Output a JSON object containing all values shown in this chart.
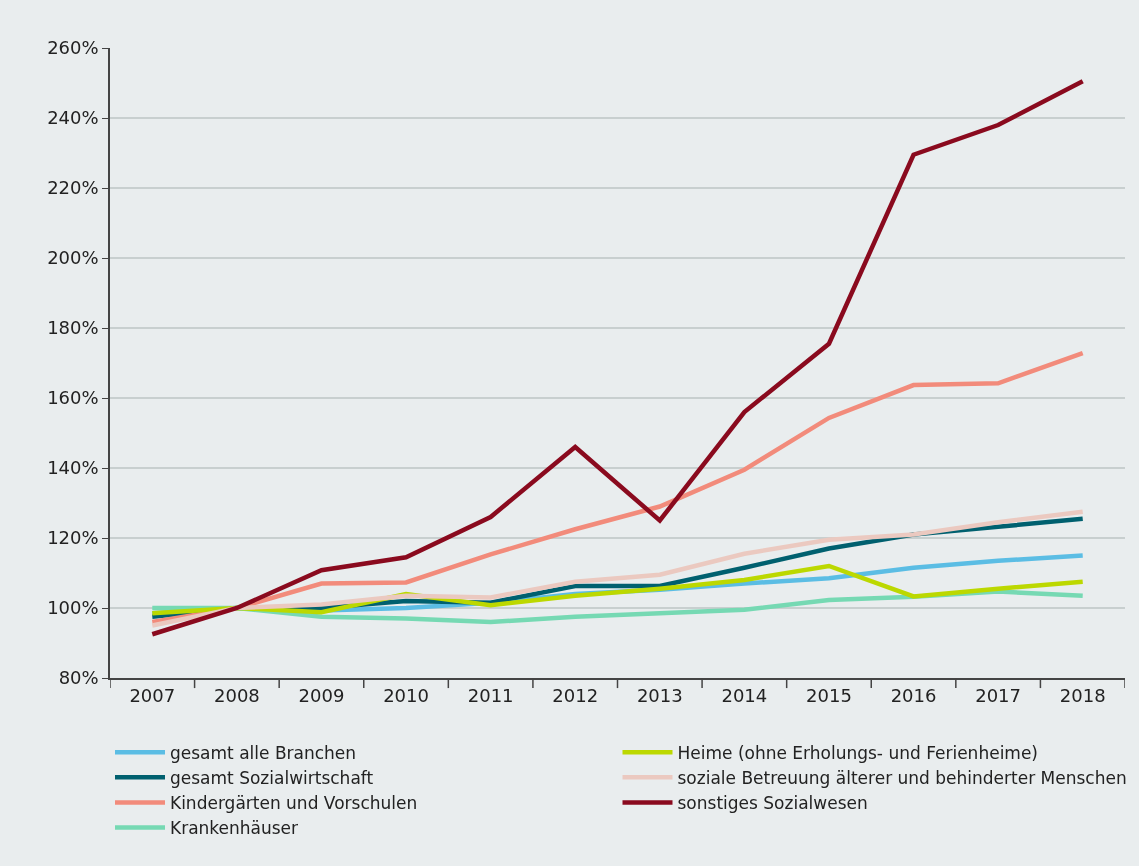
{
  "chart_data": {
    "type": "line",
    "categories": [
      "2007",
      "2008",
      "2009",
      "2010",
      "2011",
      "2012",
      "2013",
      "2014",
      "2015",
      "2016",
      "2017",
      "2018"
    ],
    "ylim": [
      80,
      260
    ],
    "yticks": [
      {
        "value": 80,
        "label": "80%"
      },
      {
        "value": 100,
        "label": "100%"
      },
      {
        "value": 120,
        "label": "120%"
      },
      {
        "value": 140,
        "label": "140%"
      },
      {
        "value": 160,
        "label": "160%"
      },
      {
        "value": 180,
        "label": "180%"
      },
      {
        "value": 200,
        "label": "200%"
      },
      {
        "value": 220,
        "label": "220%"
      },
      {
        "value": 240,
        "label": "240%"
      },
      {
        "value": 260,
        "label": "260%"
      }
    ],
    "grid": "y",
    "legend": "bottom",
    "marker": "none",
    "line_style": "solid",
    "series": [
      {
        "name": "gesamt alle Branchen",
        "color": "#5bbde4",
        "values": [
          98.5,
          100,
          99.3,
          100,
          101.5,
          104,
          105.2,
          107,
          108.5,
          111.5,
          113.5,
          115
        ]
      },
      {
        "name": "gesamt Sozialwirtschaft",
        "color": "#00606f",
        "values": [
          97.5,
          100,
          100,
          102,
          101.5,
          106.3,
          106.3,
          111.5,
          117,
          121,
          123.2,
          125.5
        ]
      },
      {
        "name": "Kindergärten und Vorschulen",
        "color": "#f28b7b",
        "values": [
          96,
          100,
          107,
          107.3,
          115.3,
          122.5,
          129,
          139.5,
          154.3,
          163.7,
          164.2,
          172.8
        ]
      },
      {
        "name": "Krankenhäuser",
        "color": "#76d9b3",
        "values": [
          100,
          100,
          97.5,
          97,
          96,
          97.5,
          98.5,
          99.5,
          102.3,
          103.2,
          104.7,
          103.5
        ]
      },
      {
        "name": "Heime (ohne Erholungs- und Ferienheime)",
        "color": "#bcd800",
        "values": [
          98.5,
          100,
          98.8,
          104,
          100.8,
          103.5,
          105.5,
          108,
          112,
          103.3,
          105.5,
          107.5
        ]
      },
      {
        "name": "soziale Betreuung älterer und behinderter Menschen",
        "color": "#ebc9c0",
        "values": [
          95,
          100,
          101,
          103.5,
          103,
          107.5,
          109.5,
          115.5,
          119.5,
          121,
          124.5,
          127.5
        ]
      },
      {
        "name": "sonstiges Sozialwesen",
        "color": "#8a0a1e",
        "values": [
          92.5,
          100,
          110.8,
          114.5,
          126,
          146,
          125,
          156,
          175.5,
          229.5,
          238,
          250.5
        ]
      }
    ]
  }
}
